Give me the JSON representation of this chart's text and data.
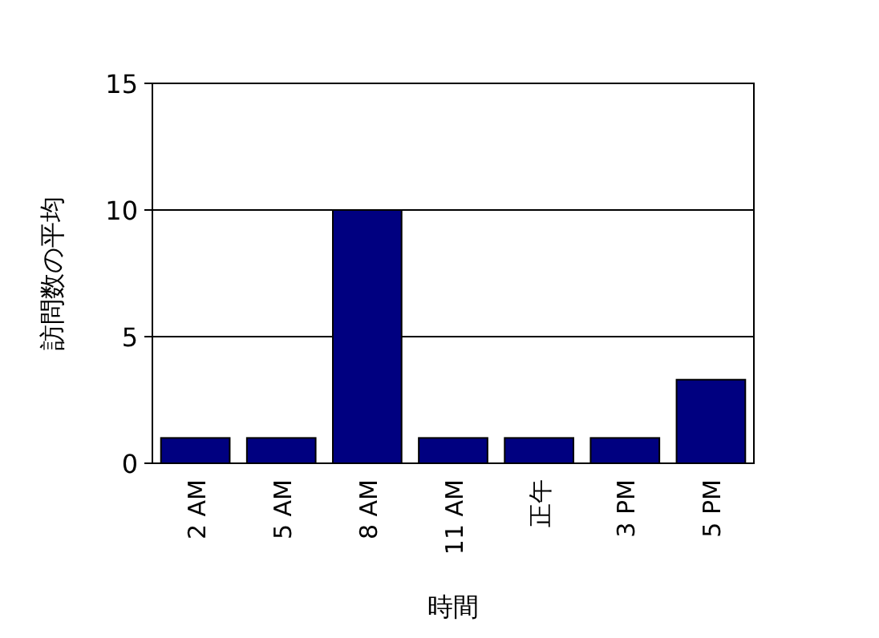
{
  "chart_data": {
    "type": "bar",
    "xlabel": "時間",
    "ylabel": "訪問数の平均",
    "categories": [
      "2 AM",
      "5 AM",
      "8 AM",
      "11 AM",
      "正午",
      "3 PM",
      "5 PM"
    ],
    "values": [
      1,
      1,
      10,
      1,
      1,
      1,
      3.3
    ],
    "color": "#000080",
    "ylim": [
      0,
      15
    ],
    "yticks": [
      0,
      5,
      10,
      15
    ],
    "grid": "y"
  }
}
